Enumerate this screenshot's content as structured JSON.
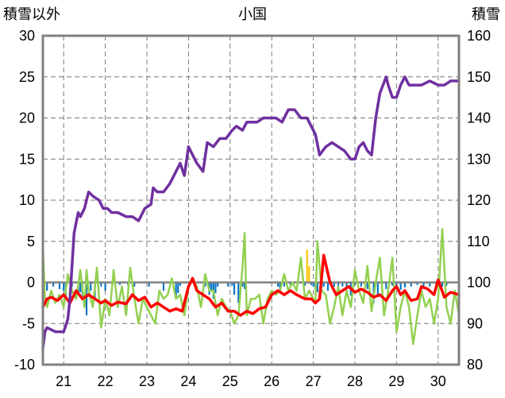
{
  "chart_data": {
    "type": "line",
    "title": "小国",
    "ylabel_left": "積雪以外",
    "ylabel_right": "積雪",
    "ylim_left": [
      -10,
      30
    ],
    "ylim_right": [
      80,
      160
    ],
    "yticks_left": [
      "30",
      "25",
      "20",
      "15",
      "10",
      "5",
      "0",
      "-5",
      "-10"
    ],
    "yticks_right": [
      "160",
      "150",
      "140",
      "130",
      "120",
      "110",
      "100",
      "90",
      "80"
    ],
    "x_start_day": 20.5,
    "x_end_day": 30.5,
    "xticks": [
      "21",
      "22",
      "23",
      "24",
      "25",
      "26",
      "27",
      "28",
      "29",
      "30"
    ],
    "grid": true,
    "legend": "none",
    "colors": {
      "snow_depth": "#7030A0",
      "temperature": "#FF0000",
      "other": "#92D050",
      "precipitation": "#0070C0",
      "snowfall": "#FFC000",
      "frame": "#808080"
    },
    "series": [
      {
        "key": "snow_depth",
        "axis": "right",
        "x": [
          20.5,
          20.55,
          20.6,
          20.8,
          21.0,
          21.1,
          21.15,
          21.25,
          21.35,
          21.4,
          21.5,
          21.6,
          21.7,
          21.85,
          21.95,
          22.05,
          22.15,
          22.3,
          22.5,
          22.65,
          22.8,
          22.95,
          23.1,
          23.15,
          23.25,
          23.4,
          23.55,
          23.7,
          23.8,
          23.9,
          24.0,
          24.1,
          24.2,
          24.35,
          24.45,
          24.6,
          24.75,
          24.9,
          25.05,
          25.15,
          25.3,
          25.4,
          25.5,
          25.65,
          25.8,
          25.95,
          26.1,
          26.25,
          26.4,
          26.55,
          26.7,
          26.85,
          26.95,
          27.05,
          27.15,
          27.3,
          27.45,
          27.6,
          27.75,
          27.9,
          28.0,
          28.1,
          28.2,
          28.3,
          28.4,
          28.5,
          28.6,
          28.75,
          28.8,
          28.9,
          29.0,
          29.1,
          29.2,
          29.3,
          29.45,
          29.6,
          29.8,
          30.0,
          30.15,
          30.3,
          30.5
        ],
        "values": [
          84,
          88,
          89,
          88,
          88,
          91,
          96,
          112,
          117,
          116,
          118,
          122,
          121,
          120,
          118,
          118,
          117,
          117,
          116,
          116,
          115,
          118,
          119,
          123,
          122,
          122,
          124,
          127,
          129,
          126,
          133,
          131,
          129,
          127,
          134,
          133,
          135,
          135,
          137,
          138,
          137,
          139,
          139,
          139,
          140,
          140,
          140,
          139,
          142,
          142,
          140,
          140,
          138,
          136,
          131,
          133,
          134,
          133,
          132,
          130,
          130,
          133,
          134,
          132,
          131,
          140,
          146,
          150,
          148,
          145,
          145,
          148,
          150,
          148,
          148,
          148,
          149,
          148,
          148,
          149,
          149
        ]
      },
      {
        "key": "temperature",
        "axis": "left",
        "x": [
          20.5,
          20.6,
          20.7,
          20.85,
          21.0,
          21.15,
          21.3,
          21.45,
          21.6,
          21.75,
          21.9,
          22.0,
          22.15,
          22.3,
          22.5,
          22.65,
          22.8,
          22.95,
          23.1,
          23.25,
          23.4,
          23.55,
          23.7,
          23.85,
          24.0,
          24.1,
          24.2,
          24.35,
          24.5,
          24.65,
          24.8,
          24.95,
          25.1,
          25.25,
          25.4,
          25.55,
          25.7,
          25.85,
          26.0,
          26.15,
          26.3,
          26.45,
          26.6,
          26.8,
          26.95,
          27.05,
          27.15,
          27.25,
          27.4,
          27.55,
          27.7,
          27.85,
          28.0,
          28.15,
          28.3,
          28.45,
          28.6,
          28.75,
          28.9,
          29.0,
          29.1,
          29.2,
          29.35,
          29.5,
          29.6,
          29.75,
          29.9,
          30.0,
          30.15,
          30.3,
          30.5
        ],
        "values": [
          -3,
          -2,
          -1.8,
          -2.2,
          -1.5,
          -2.5,
          -1,
          -2,
          -1.5,
          -2,
          -2.5,
          -2.2,
          -2.8,
          -2.4,
          -2.6,
          -1.5,
          -2.2,
          -1.8,
          -3,
          -2.5,
          -3,
          -3.5,
          -3.2,
          -3.5,
          -0.5,
          0.5,
          -1,
          -1.5,
          -2,
          -3,
          -2.5,
          -3.5,
          -3.5,
          -4,
          -3.5,
          -3.8,
          -3.2,
          -3,
          -1.5,
          -1,
          -1.5,
          -1,
          -1.5,
          -2,
          -2,
          -2.5,
          -2,
          3.3,
          0,
          -1.5,
          -1,
          -0.5,
          -1.2,
          -0.8,
          -1.2,
          -1.8,
          -1.5,
          -2.2,
          -1,
          -0.5,
          -1.5,
          -1,
          -2.2,
          -2,
          -0.5,
          -0.8,
          -1.5,
          0.3,
          -1.8,
          -1.2,
          -1.5
        ]
      },
      {
        "key": "other",
        "axis": "left",
        "x": [
          20.5,
          20.55,
          20.6,
          20.7,
          20.8,
          20.9,
          21.0,
          21.1,
          21.2,
          21.3,
          21.4,
          21.5,
          21.55,
          21.6,
          21.7,
          21.8,
          21.9,
          22.0,
          22.1,
          22.2,
          22.3,
          22.4,
          22.5,
          22.6,
          22.7,
          22.8,
          22.9,
          23.0,
          23.1,
          23.2,
          23.3,
          23.4,
          23.5,
          23.6,
          23.7,
          23.8,
          23.9,
          24.0,
          24.1,
          24.2,
          24.3,
          24.4,
          24.5,
          24.6,
          24.7,
          24.8,
          24.9,
          25.0,
          25.1,
          25.2,
          25.3,
          25.35,
          25.4,
          25.5,
          25.6,
          25.7,
          25.8,
          25.9,
          26.0,
          26.1,
          26.2,
          26.3,
          26.4,
          26.5,
          26.6,
          26.7,
          26.8,
          26.9,
          27.0,
          27.05,
          27.1,
          27.2,
          27.3,
          27.4,
          27.5,
          27.6,
          27.7,
          27.8,
          27.9,
          28.0,
          28.1,
          28.2,
          28.3,
          28.4,
          28.5,
          28.6,
          28.7,
          28.8,
          28.9,
          29.0,
          29.1,
          29.2,
          29.3,
          29.4,
          29.5,
          29.6,
          29.7,
          29.8,
          29.9,
          30.0,
          30.1,
          30.2,
          30.3,
          30.4,
          30.5
        ],
        "values": [
          4.5,
          -2,
          -3,
          -1,
          -2.5,
          -1.5,
          -3,
          1,
          -1,
          -2,
          1.5,
          -3,
          1.5,
          -1,
          -3,
          1.8,
          -5.5,
          -2,
          -4,
          1.5,
          -3,
          -0.5,
          -4,
          1.8,
          -2,
          -5,
          -2,
          -3,
          -4,
          -5,
          -1,
          -2,
          -1.5,
          0.5,
          -2,
          -1.5,
          -4,
          -0.5,
          0.5,
          -0.5,
          -3,
          1,
          -1,
          -1,
          -4,
          -2,
          -3,
          -3.5,
          -5,
          -4,
          2,
          6,
          -4,
          -2,
          -2,
          -1.5,
          -5,
          -2,
          -1,
          -1.5,
          -1,
          1,
          -1,
          0,
          -1,
          3,
          -2,
          -1,
          -2,
          -2.5,
          5,
          -1,
          -1.5,
          -5,
          -3,
          -0.5,
          -4,
          -1,
          -3,
          1.5,
          -1,
          -2.5,
          2,
          -3.5,
          0,
          3,
          -4,
          -1,
          3,
          -6,
          -3,
          -1,
          -3,
          -7.5,
          -4,
          -1,
          -3,
          -2,
          -5,
          -2,
          6.5,
          -3,
          -5,
          -1,
          -4
        ]
      }
    ],
    "bars": [
      {
        "key": "precipitation",
        "axis": "left",
        "x": [
          20.6,
          20.75,
          20.9,
          21.0,
          21.05,
          21.2,
          21.35,
          21.4,
          21.45,
          21.55,
          21.65,
          21.75,
          21.9,
          22.0,
          22.35,
          22.55,
          22.7,
          23.05,
          23.4,
          23.7,
          23.75,
          23.8,
          24.05,
          24.4,
          24.5,
          24.55,
          24.6,
          24.65,
          24.7,
          24.95,
          25.05,
          25.1,
          25.2,
          25.3,
          25.35,
          26.15,
          26.2,
          26.3,
          26.45,
          26.8,
          26.95,
          27.0,
          27.05,
          27.1,
          27.2,
          27.25,
          27.35,
          27.5,
          27.6,
          27.7,
          27.8,
          27.9,
          28.0,
          28.15,
          28.3,
          28.45,
          28.55,
          28.65,
          28.75,
          28.9,
          29.0,
          29.1,
          29.2,
          29.35,
          29.5,
          29.65,
          29.8,
          29.95,
          30.1,
          30.2
        ],
        "values": [
          -1,
          -0.5,
          -0.8,
          -1,
          -2,
          -0.5,
          -1.5,
          -1.2,
          -2,
          -4,
          -1,
          -2,
          -0.5,
          -1,
          -0.3,
          -0.4,
          -0.5,
          -0.5,
          -1,
          -1.8,
          -1.3,
          -0.4,
          -0.3,
          -0.5,
          -1.5,
          -1,
          -2,
          -1.3,
          -0.5,
          -0.5,
          -0.4,
          -1.5,
          -2.5,
          -0.5,
          -0.8,
          -0.5,
          -0.8,
          -0.5,
          -0.3,
          -0.4,
          -0.3,
          -0.5,
          -0.8,
          -1.2,
          -0.7,
          -0.5,
          -1,
          -0.5,
          -0.6,
          -0.5,
          -0.8,
          -1.6,
          -0.3,
          -0.5,
          -0.8,
          -2.5,
          -1.8,
          -0.6,
          -0.8,
          -0.4,
          -0.4,
          -0.9,
          -0.6,
          -0.5,
          -0.3,
          -0.8,
          -0.5,
          -0.6,
          -0.5,
          -0.4
        ]
      },
      {
        "key": "snowfall",
        "axis": "left",
        "x": [
          26.85,
          26.9
        ],
        "values": [
          4,
          2
        ]
      }
    ]
  }
}
